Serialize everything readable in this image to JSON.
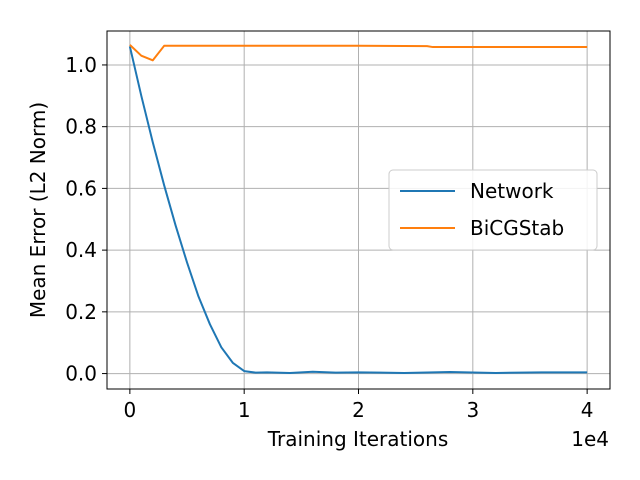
{
  "chart_data": {
    "type": "line",
    "xlabel": "Training Iterations",
    "ylabel": "Mean Error (L2 Norm)",
    "x_offset_label": "1e4",
    "xlim": [
      -0.2,
      4.2
    ],
    "ylim": [
      -0.05,
      1.11
    ],
    "xticks": [
      0,
      1,
      2,
      3,
      4
    ],
    "xtick_labels": [
      "0",
      "1",
      "2",
      "3",
      "4"
    ],
    "yticks": [
      0.0,
      0.2,
      0.4,
      0.6,
      0.8,
      1.0
    ],
    "ytick_labels": [
      "0.0",
      "0.2",
      "0.4",
      "0.6",
      "0.8",
      "1.0"
    ],
    "grid": true,
    "legend_position": "center-right",
    "series": [
      {
        "name": "Network",
        "color": "#1f77b4",
        "x": [
          0,
          0.1,
          0.2,
          0.3,
          0.4,
          0.5,
          0.6,
          0.7,
          0.8,
          0.9,
          1.0,
          1.1,
          1.2,
          1.4,
          1.6,
          1.8,
          2.0,
          2.4,
          2.8,
          3.2,
          3.6,
          4.0
        ],
        "y": [
          1.06,
          0.9,
          0.75,
          0.61,
          0.48,
          0.36,
          0.25,
          0.16,
          0.085,
          0.035,
          0.008,
          0.003,
          0.004,
          0.002,
          0.006,
          0.003,
          0.004,
          0.002,
          0.005,
          0.002,
          0.004,
          0.004
        ]
      },
      {
        "name": "BiCGStab",
        "color": "#ff7f0e",
        "x": [
          0,
          0.1,
          0.2,
          0.3,
          0.5,
          1.0,
          2.0,
          2.6,
          2.65,
          3.0,
          4.0
        ],
        "y": [
          1.065,
          1.03,
          1.015,
          1.062,
          1.062,
          1.062,
          1.062,
          1.061,
          1.058,
          1.058,
          1.058
        ]
      }
    ]
  }
}
